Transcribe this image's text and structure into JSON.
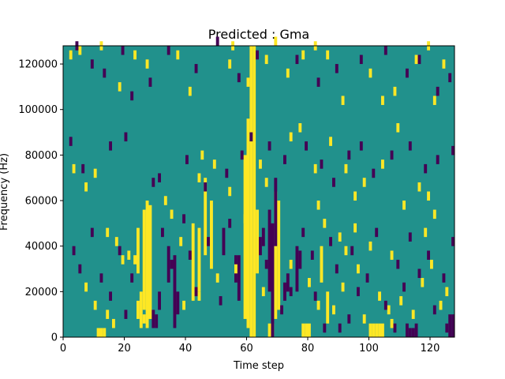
{
  "chart_data": {
    "type": "heatmap",
    "title": "Predicted : Gma",
    "xlabel": "Time step",
    "ylabel": "Frequency (Hz)",
    "xlim": [
      0,
      128
    ],
    "ylim": [
      0,
      128000
    ],
    "xticks": [
      "0",
      "20",
      "40",
      "60",
      "80",
      "100",
      "120"
    ],
    "yticks": [
      "0",
      "20000",
      "40000",
      "60000",
      "80000",
      "100000",
      "120000"
    ],
    "grid": false,
    "colors": {
      "background": "#21918c",
      "low": "#440154",
      "high": "#fde725"
    },
    "rows": 64,
    "cols": 128,
    "high_segments": [
      [
        61,
        0,
        128000
      ],
      [
        62,
        0,
        128000
      ],
      [
        60,
        4000,
        96000
      ],
      [
        59,
        8000,
        80000
      ],
      [
        63,
        28000,
        56000
      ],
      [
        27,
        4000,
        60000
      ],
      [
        28,
        8000,
        58000
      ],
      [
        26,
        12000,
        56000
      ],
      [
        25,
        4000,
        20000
      ],
      [
        24,
        8000,
        16000
      ],
      [
        24,
        28000,
        48000
      ],
      [
        69,
        8000,
        64000
      ],
      [
        70,
        12000,
        60000
      ],
      [
        48,
        30000,
        60000
      ],
      [
        42,
        16000,
        50000
      ],
      [
        44,
        20000,
        48000
      ],
      [
        46,
        36000,
        70000
      ],
      [
        86,
        6000,
        20000
      ],
      [
        84,
        24000,
        40000
      ],
      [
        100,
        0,
        6000
      ],
      [
        101,
        0,
        6000
      ],
      [
        102,
        0,
        6000
      ],
      [
        103,
        0,
        6000
      ],
      [
        104,
        0,
        6000
      ],
      [
        67,
        0,
        6000
      ],
      [
        68,
        0,
        6000
      ],
      [
        78,
        0,
        6000
      ],
      [
        79,
        0,
        6000
      ],
      [
        80,
        0,
        6000
      ],
      [
        11,
        0,
        4000
      ],
      [
        12,
        0,
        4000
      ],
      [
        13,
        0,
        4000
      ]
    ],
    "low_segments": [
      [
        68,
        0,
        50000
      ],
      [
        67,
        20000,
        56000
      ],
      [
        69,
        40000,
        70000
      ],
      [
        36,
        4000,
        36000
      ],
      [
        37,
        10000,
        20000
      ],
      [
        34,
        24000,
        40000
      ],
      [
        76,
        20000,
        40000
      ],
      [
        77,
        30000,
        38000
      ],
      [
        57,
        16000,
        36000
      ],
      [
        56,
        24000,
        36000
      ],
      [
        52,
        36000,
        48000
      ],
      [
        29,
        4000,
        12000
      ],
      [
        30,
        4000,
        10000
      ],
      [
        31,
        12000,
        20000
      ],
      [
        112,
        0,
        6000
      ],
      [
        113,
        0,
        4000
      ],
      [
        114,
        0,
        4000
      ],
      [
        115,
        0,
        6000
      ],
      [
        126,
        0,
        10000
      ],
      [
        127,
        0,
        10000
      ],
      [
        72,
        16000,
        24000
      ],
      [
        73,
        20000,
        28000
      ],
      [
        64,
        36000,
        44000
      ],
      [
        65,
        40000,
        48000
      ]
    ],
    "high_scatter": [
      [
        2,
        122000
      ],
      [
        5,
        124000
      ],
      [
        12,
        126000
      ],
      [
        18,
        108000
      ],
      [
        23,
        122000
      ],
      [
        27,
        118000
      ],
      [
        37,
        122000
      ],
      [
        41,
        106000
      ],
      [
        54,
        118000
      ],
      [
        55,
        126000
      ],
      [
        60,
        110000
      ],
      [
        66,
        120000
      ],
      [
        69,
        128000
      ],
      [
        73,
        114000
      ],
      [
        78,
        122000
      ],
      [
        82,
        126000
      ],
      [
        86,
        122000
      ],
      [
        91,
        102000
      ],
      [
        100,
        114000
      ],
      [
        104,
        102000
      ],
      [
        108,
        106000
      ],
      [
        109,
        90000
      ],
      [
        115,
        120000
      ],
      [
        119,
        126000
      ],
      [
        121,
        102000
      ],
      [
        124,
        118000
      ],
      [
        3,
        72000
      ],
      [
        7,
        64000
      ],
      [
        10,
        70000
      ],
      [
        14,
        44000
      ],
      [
        17,
        40000
      ],
      [
        19,
        32000
      ],
      [
        21,
        34000
      ],
      [
        33,
        58000
      ],
      [
        35,
        52000
      ],
      [
        38,
        40000
      ],
      [
        44,
        68000
      ],
      [
        45,
        78000
      ],
      [
        49,
        74000
      ],
      [
        54,
        62000
      ],
      [
        59,
        50000
      ],
      [
        64,
        74000
      ],
      [
        66,
        66000
      ],
      [
        74,
        86000
      ],
      [
        77,
        90000
      ],
      [
        82,
        72000
      ],
      [
        87,
        84000
      ],
      [
        92,
        72000
      ],
      [
        95,
        60000
      ],
      [
        98,
        66000
      ],
      [
        104,
        74000
      ],
      [
        111,
        56000
      ],
      [
        116,
        64000
      ],
      [
        119,
        60000
      ],
      [
        121,
        52000
      ],
      [
        7,
        20000
      ],
      [
        10,
        12000
      ],
      [
        14,
        8000
      ],
      [
        16,
        4000
      ],
      [
        23,
        32000
      ],
      [
        26,
        6000
      ],
      [
        39,
        12000
      ],
      [
        44,
        16000
      ],
      [
        50,
        24000
      ],
      [
        56,
        28000
      ],
      [
        65,
        18000
      ],
      [
        74,
        30000
      ],
      [
        80,
        22000
      ],
      [
        83,
        12000
      ],
      [
        88,
        10000
      ],
      [
        91,
        20000
      ],
      [
        96,
        28000
      ],
      [
        98,
        6000
      ],
      [
        103,
        16000
      ],
      [
        106,
        10000
      ],
      [
        107,
        4000
      ],
      [
        110,
        14000
      ],
      [
        114,
        8000
      ],
      [
        117,
        22000
      ],
      [
        120,
        30000
      ],
      [
        123,
        12000
      ],
      [
        125,
        18000
      ],
      [
        92,
        36000
      ],
      [
        83,
        56000
      ],
      [
        85,
        48000
      ],
      [
        90,
        42000
      ],
      [
        95,
        46000
      ],
      [
        100,
        38000
      ],
      [
        118,
        44000
      ],
      [
        107,
        34000
      ]
    ],
    "low_scatter": [
      [
        4,
        126000
      ],
      [
        9,
        118000
      ],
      [
        13,
        114000
      ],
      [
        19,
        124000
      ],
      [
        22,
        104000
      ],
      [
        28,
        110000
      ],
      [
        34,
        124000
      ],
      [
        43,
        116000
      ],
      [
        50,
        128000
      ],
      [
        57,
        112000
      ],
      [
        63,
        122000
      ],
      [
        76,
        120000
      ],
      [
        83,
        110000
      ],
      [
        89,
        116000
      ],
      [
        97,
        120000
      ],
      [
        105,
        124000
      ],
      [
        112,
        114000
      ],
      [
        116,
        120000
      ],
      [
        122,
        106000
      ],
      [
        126,
        112000
      ],
      [
        2,
        84000
      ],
      [
        6,
        72000
      ],
      [
        15,
        82000
      ],
      [
        20,
        86000
      ],
      [
        29,
        66000
      ],
      [
        31,
        68000
      ],
      [
        40,
        76000
      ],
      [
        46,
        64000
      ],
      [
        53,
        70000
      ],
      [
        58,
        78000
      ],
      [
        61,
        86000
      ],
      [
        67,
        82000
      ],
      [
        72,
        76000
      ],
      [
        79,
        82000
      ],
      [
        84,
        74000
      ],
      [
        88,
        66000
      ],
      [
        93,
        78000
      ],
      [
        97,
        82000
      ],
      [
        101,
        70000
      ],
      [
        107,
        78000
      ],
      [
        113,
        82000
      ],
      [
        118,
        72000
      ],
      [
        122,
        76000
      ],
      [
        127,
        80000
      ],
      [
        3,
        36000
      ],
      [
        5,
        28000
      ],
      [
        9,
        44000
      ],
      [
        12,
        24000
      ],
      [
        15,
        16000
      ],
      [
        18,
        36000
      ],
      [
        20,
        8000
      ],
      [
        22,
        24000
      ],
      [
        32,
        44000
      ],
      [
        35,
        30000
      ],
      [
        39,
        50000
      ],
      [
        41,
        34000
      ],
      [
        43,
        18000
      ],
      [
        47,
        40000
      ],
      [
        51,
        14000
      ],
      [
        54,
        48000
      ],
      [
        66,
        30000
      ],
      [
        71,
        10000
      ],
      [
        74,
        18000
      ],
      [
        78,
        44000
      ],
      [
        81,
        34000
      ],
      [
        82,
        16000
      ],
      [
        87,
        40000
      ],
      [
        89,
        28000
      ],
      [
        93,
        6000
      ],
      [
        94,
        36000
      ],
      [
        96,
        18000
      ],
      [
        99,
        24000
      ],
      [
        102,
        44000
      ],
      [
        105,
        12000
      ],
      [
        109,
        30000
      ],
      [
        111,
        20000
      ],
      [
        113,
        42000
      ],
      [
        116,
        26000
      ],
      [
        119,
        34000
      ],
      [
        121,
        10000
      ],
      [
        124,
        24000
      ],
      [
        127,
        40000
      ],
      [
        85,
        2000
      ],
      [
        90,
        2000
      ],
      [
        108,
        2000
      ],
      [
        125,
        2000
      ]
    ]
  }
}
